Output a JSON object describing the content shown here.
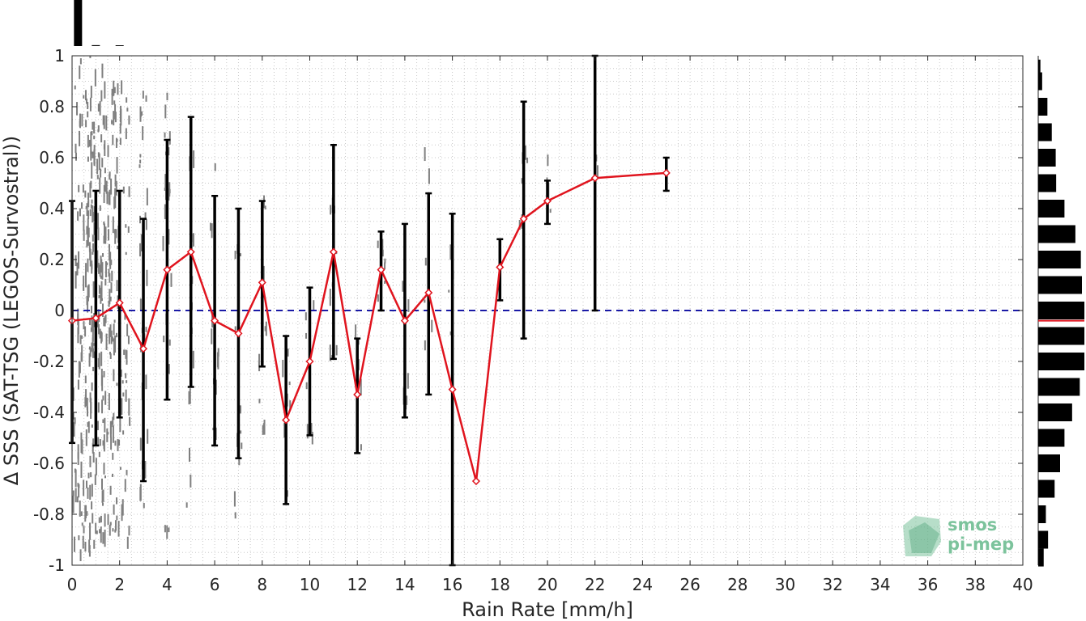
{
  "chart_data": {
    "type": "scatter",
    "title": "",
    "xlabel": "Rain Rate [mm/h]",
    "ylabel": "Δ SSS (SAT-TSG (LEGOS-Survostral))",
    "xlim": [
      0,
      40
    ],
    "ylim": [
      -1,
      1
    ],
    "x_ticks": [
      0,
      2,
      4,
      6,
      8,
      10,
      12,
      14,
      16,
      18,
      20,
      22,
      24,
      26,
      28,
      30,
      32,
      34,
      36,
      38,
      40
    ],
    "y_ticks": [
      -1,
      -0.8,
      -0.6,
      -0.4,
      -0.2,
      0,
      0.2,
      0.4,
      0.6,
      0.8,
      1
    ],
    "grid": "dotted",
    "zero_line": {
      "y": 0,
      "style": "dashed",
      "color": "#1a1aa6"
    },
    "binned_mean": {
      "color": "#e0141e",
      "marker": "diamond",
      "x": [
        0,
        1,
        2,
        3,
        4,
        5,
        6,
        7,
        8,
        9,
        10,
        11,
        12,
        13,
        14,
        15,
        16,
        17,
        18,
        19,
        20,
        22,
        25
      ],
      "y": [
        -0.04,
        -0.03,
        0.03,
        -0.15,
        0.16,
        0.23,
        -0.04,
        -0.09,
        0.11,
        -0.43,
        -0.2,
        0.23,
        -0.33,
        0.16,
        -0.04,
        0.07,
        -0.31,
        -0.67,
        0.17,
        0.36,
        0.43,
        0.52,
        0.54
      ],
      "err_low": [
        -0.52,
        -0.53,
        -0.42,
        -0.67,
        -0.35,
        -0.3,
        -0.53,
        -0.58,
        -0.22,
        -0.76,
        -0.49,
        -0.19,
        -0.56,
        0,
        -0.42,
        -0.33,
        -1,
        -0.67,
        0.04,
        -0.11,
        0.34,
        0,
        0.47
      ],
      "err_high": [
        0.43,
        0.47,
        0.47,
        0.36,
        0.67,
        0.76,
        0.45,
        0.4,
        0.43,
        -0.1,
        0.09,
        0.65,
        -0.11,
        0.31,
        0.34,
        0.46,
        0.38,
        -0.67,
        0.28,
        0.82,
        0.51,
        1,
        0.6
      ]
    },
    "scatter_clusters": [
      {
        "x": 0.5,
        "y_min": -1,
        "y_max": 1,
        "density": 0.95
      },
      {
        "x": 1,
        "y_min": -0.95,
        "y_max": 0.9,
        "density": 0.8
      },
      {
        "x": 1.5,
        "y_min": -0.9,
        "y_max": 0.92,
        "density": 0.7
      },
      {
        "x": 2,
        "y_min": -0.95,
        "y_max": 0.92,
        "density": 0.55
      },
      {
        "x": 3,
        "y_min": -0.8,
        "y_max": 0.85,
        "density": 0.25
      },
      {
        "x": 4,
        "y_min": -0.9,
        "y_max": 0.85,
        "density": 0.18
      },
      {
        "x": 5,
        "y_min": -0.8,
        "y_max": 0.7,
        "density": 0.12
      },
      {
        "x": 6,
        "y_min": -0.6,
        "y_max": 0.6,
        "density": 0.1
      },
      {
        "x": 7,
        "y_min": -0.95,
        "y_max": 0.35,
        "density": 0.08
      },
      {
        "x": 8,
        "y_min": -0.5,
        "y_max": 0.45,
        "density": 0.08
      },
      {
        "x": 9,
        "y_min": -0.8,
        "y_max": -0.15,
        "density": 0.06
      },
      {
        "x": 10,
        "y_min": -0.6,
        "y_max": 0.05,
        "density": 0.06
      },
      {
        "x": 11,
        "y_min": -0.2,
        "y_max": 0.6,
        "density": 0.08
      },
      {
        "x": 12,
        "y_min": -0.6,
        "y_max": -0.1,
        "density": 0.05
      },
      {
        "x": 13,
        "y_min": 0,
        "y_max": 0.3,
        "density": 0.05
      },
      {
        "x": 14,
        "y_min": -0.4,
        "y_max": 0.3,
        "density": 0.05
      },
      {
        "x": 15,
        "y_min": -0.3,
        "y_max": 0.6,
        "density": 0.05
      },
      {
        "x": 16,
        "y_min": -0.2,
        "y_max": 0.35,
        "density": 0.04
      },
      {
        "x": 19,
        "y_min": 0.2,
        "y_max": 0.6,
        "density": 0.04
      },
      {
        "x": 20,
        "y_min": 0.38,
        "y_max": 0.6,
        "density": 0.03
      },
      {
        "x": 22,
        "y_min": 0.5,
        "y_max": 0.6,
        "density": 0.02
      }
    ],
    "top_histogram": [
      {
        "x": 0.25,
        "count": 1.0
      },
      {
        "x": 1,
        "count": 0.02
      },
      {
        "x": 2,
        "count": 0.01
      }
    ],
    "right_histogram": [
      {
        "y": 0.95,
        "count": 0.1
      },
      {
        "y": 0.9,
        "count": 0.18
      },
      {
        "y": 0.8,
        "count": 0.42
      },
      {
        "y": 0.7,
        "count": 0.62
      },
      {
        "y": 0.6,
        "count": 0.8
      },
      {
        "y": 0.5,
        "count": 0.82
      },
      {
        "y": 0.4,
        "count": 1.2
      },
      {
        "y": 0.3,
        "count": 1.7
      },
      {
        "y": 0.2,
        "count": 1.95
      },
      {
        "y": 0.1,
        "count": 2.0
      },
      {
        "y": 0.0,
        "count": 2.2
      },
      {
        "y": -0.1,
        "count": 2.2
      },
      {
        "y": -0.2,
        "count": 2.2
      },
      {
        "y": -0.3,
        "count": 1.9
      },
      {
        "y": -0.4,
        "count": 1.55
      },
      {
        "y": -0.5,
        "count": 1.2
      },
      {
        "y": -0.6,
        "count": 1.0
      },
      {
        "y": -0.7,
        "count": 0.75
      },
      {
        "y": -0.8,
        "count": 0.35
      },
      {
        "y": -0.9,
        "count": 0.45
      },
      {
        "y": -0.97,
        "count": 0.25
      }
    ],
    "right_hist_mean_line": {
      "y": -0.04,
      "color": "#e0141e"
    }
  },
  "watermark": {
    "line1": "smos",
    "line2": "pi-mep",
    "color": "#3d9a6a"
  }
}
